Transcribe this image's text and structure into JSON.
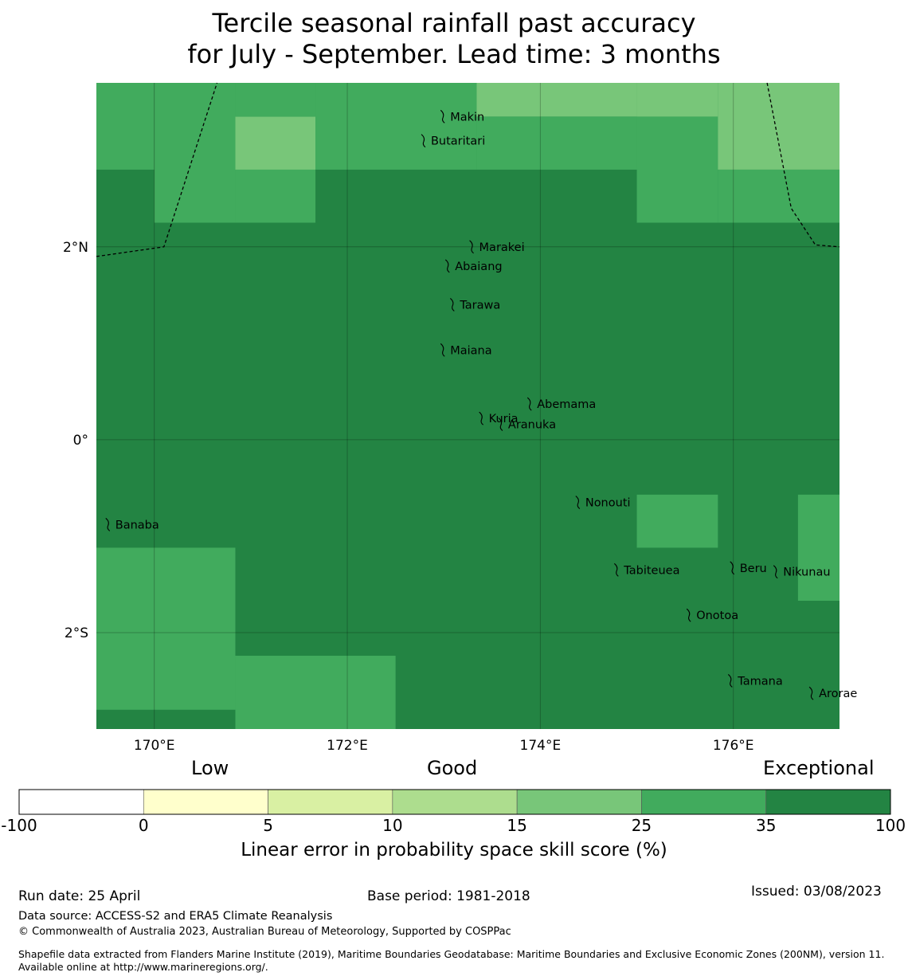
{
  "title": {
    "line1": "Tercile seasonal rainfall past accuracy",
    "line2": "for July - September. Lead time: 3 months"
  },
  "map": {
    "longitude_range": [
      169.4,
      177.1
    ],
    "latitude_range": [
      -3.0,
      3.7
    ],
    "lon_ticks": [
      {
        "value": 170,
        "label": "170°E"
      },
      {
        "value": 172,
        "label": "172°E"
      },
      {
        "value": 174,
        "label": "174°E"
      },
      {
        "value": 176,
        "label": "176°E"
      }
    ],
    "lat_ticks": [
      {
        "value": 2,
        "label": "2°N"
      },
      {
        "value": 0,
        "label": "0°"
      },
      {
        "value": -2,
        "label": "2°S"
      }
    ],
    "gridlines": true,
    "base_category": "35-100",
    "cells": [
      {
        "lon": [
          169.4,
          170.0
        ],
        "lat": [
          2.8,
          3.7
        ],
        "category": "25-35"
      },
      {
        "lon": [
          170.0,
          170.84
        ],
        "lat": [
          2.25,
          3.7
        ],
        "category": "25-35"
      },
      {
        "lon": [
          170.84,
          171.67
        ],
        "lat": [
          2.25,
          2.8
        ],
        "category": "25-35"
      },
      {
        "lon": [
          170.84,
          171.67
        ],
        "lat": [
          2.8,
          3.35
        ],
        "category": "15-25"
      },
      {
        "lon": [
          170.84,
          171.67
        ],
        "lat": [
          3.35,
          3.7
        ],
        "category": "25-35"
      },
      {
        "lon": [
          171.67,
          173.34
        ],
        "lat": [
          2.8,
          3.7
        ],
        "category": "25-35"
      },
      {
        "lon": [
          173.34,
          175.0
        ],
        "lat": [
          3.35,
          3.7
        ],
        "category": "15-25"
      },
      {
        "lon": [
          173.34,
          175.0
        ],
        "lat": [
          2.8,
          3.35
        ],
        "category": "25-35"
      },
      {
        "lon": [
          175.0,
          175.84
        ],
        "lat": [
          2.25,
          3.35
        ],
        "category": "25-35"
      },
      {
        "lon": [
          175.0,
          175.84
        ],
        "lat": [
          3.35,
          3.7
        ],
        "category": "15-25"
      },
      {
        "lon": [
          175.84,
          177.1
        ],
        "lat": [
          2.8,
          3.7
        ],
        "category": "15-25"
      },
      {
        "lon": [
          175.84,
          177.1
        ],
        "lat": [
          2.25,
          2.8
        ],
        "category": "25-35"
      },
      {
        "lon": [
          175.0,
          175.84
        ],
        "lat": [
          -1.12,
          -0.57
        ],
        "category": "25-35"
      },
      {
        "lon": [
          176.67,
          177.1
        ],
        "lat": [
          -1.67,
          -0.57
        ],
        "category": "25-35"
      },
      {
        "lon": [
          169.4,
          170.84
        ],
        "lat": [
          -2.8,
          -1.12
        ],
        "category": "25-35"
      },
      {
        "lon": [
          170.84,
          172.5
        ],
        "lat": [
          -3.0,
          -2.24
        ],
        "category": "25-35"
      }
    ],
    "islands": [
      {
        "name": "Makin",
        "lon": 173.0,
        "lat": 3.35
      },
      {
        "name": "Butaritari",
        "lon": 172.8,
        "lat": 3.1
      },
      {
        "name": "Marakei",
        "lon": 173.3,
        "lat": 2.0
      },
      {
        "name": "Abaiang",
        "lon": 173.05,
        "lat": 1.8
      },
      {
        "name": "Tarawa",
        "lon": 173.1,
        "lat": 1.4
      },
      {
        "name": "Maiana",
        "lon": 173.0,
        "lat": 0.93
      },
      {
        "name": "Abemama",
        "lon": 173.9,
        "lat": 0.37
      },
      {
        "name": "Kuria",
        "lon": 173.4,
        "lat": 0.22
      },
      {
        "name": "Aranuka",
        "lon": 173.6,
        "lat": 0.16
      },
      {
        "name": "Banaba",
        "lon": 169.53,
        "lat": -0.88
      },
      {
        "name": "Nonouti",
        "lon": 174.4,
        "lat": -0.65
      },
      {
        "name": "Tabiteuea",
        "lon": 174.8,
        "lat": -1.35
      },
      {
        "name": "Beru",
        "lon": 176.0,
        "lat": -1.33
      },
      {
        "name": "Nikunau",
        "lon": 176.45,
        "lat": -1.37
      },
      {
        "name": "Onotoa",
        "lon": 175.55,
        "lat": -1.82
      },
      {
        "name": "Tamana",
        "lon": 175.98,
        "lat": -2.5
      },
      {
        "name": "Arorae",
        "lon": 176.82,
        "lat": -2.63
      }
    ],
    "eez_boundaries": [
      [
        [
          169.4,
          1.9
        ],
        [
          170.1,
          2.0
        ],
        [
          170.65,
          3.7
        ]
      ],
      [
        [
          176.35,
          3.7
        ],
        [
          176.6,
          2.4
        ],
        [
          176.85,
          2.02
        ],
        [
          177.1,
          2.0
        ]
      ]
    ]
  },
  "legend": {
    "group_labels": [
      "Low",
      "Good",
      "Exceptional"
    ],
    "boundaries": [
      "-100",
      "0",
      "5",
      "10",
      "15",
      "25",
      "35",
      "100"
    ],
    "colors": [
      "#ffffff",
      "#ffffcc",
      "#d9f0a3",
      "#addd8e",
      "#78c679",
      "#41ab5d",
      "#238443"
    ],
    "title": "Linear error in probability space skill score (%)"
  },
  "category_colors": {
    "15-25": "#78c679",
    "25-35": "#41ab5d",
    "35-100": "#238443"
  },
  "footer": {
    "run_date": "Run date: 25 April",
    "base_period": "Base period: 1981-2018",
    "issued": "Issued: 03/08/2023",
    "data_source": "Data source: ACCESS-S2 and ERA5 Climate Reanalysis",
    "copyright": "© Commonwealth of Australia 2023, Australian Bureau of Meteorology, Supported by COSPPac",
    "shapefile": "Shapefile data extracted from Flanders Marine Institute (2019), Maritime Boundaries Geodatabase: Maritime Boundaries and Exclusive Economic Zones (200NM), version 11. Available online at http://www.marineregions.org/."
  }
}
